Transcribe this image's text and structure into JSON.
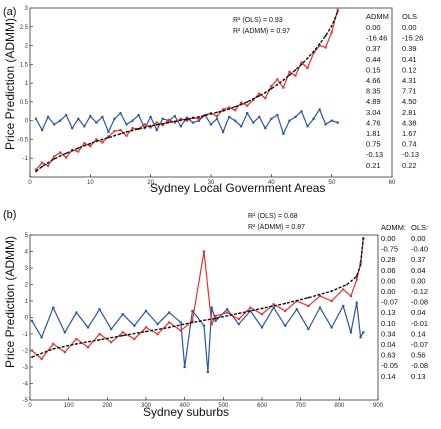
{
  "colors": {
    "admm": "#e8302e",
    "ols": "#2a55a8",
    "actual": "#111111",
    "axis": "#333333"
  },
  "panels": [
    {
      "label": "(a)",
      "xlabel": "Sydney Local Government Areas",
      "ylabel": "Price Prediction (ADMM)",
      "r2_ols": "R² (OLS) = 0.93",
      "r2_admm": "R² (ADMM) = 0.97",
      "table": {
        "headers": [
          "ADMM",
          "OLS"
        ],
        "rows": [
          [
            "0.00",
            "0.00"
          ],
          [
            "-16.46",
            "-15.26"
          ],
          [
            "0.37",
            "0.39"
          ],
          [
            "0.44",
            "0.41"
          ],
          [
            "0.15",
            "0.12"
          ],
          [
            "4.66",
            "4.31"
          ],
          [
            "8.35",
            "7.71"
          ],
          [
            "4.89",
            "4.50"
          ],
          [
            "3.04",
            "2.81"
          ],
          [
            "4.76",
            "4.38"
          ],
          [
            "1.81",
            "1.67"
          ],
          [
            "0.75",
            "0.74"
          ],
          [
            "-0.13",
            "-0.13"
          ],
          [
            "0.21",
            "0.22"
          ]
        ]
      }
    },
    {
      "label": "(b)",
      "xlabel": "Sydney suburbs",
      "ylabel": "Price Prediction (ADMM)",
      "r2_ols": "R² (OLS) = 0.68",
      "r2_admm": "R² (ADMM) = 0.87",
      "table": {
        "headers": [
          "ADMM:",
          "OLS:"
        ],
        "rows": [
          [
            "0.00",
            "0.00"
          ],
          [
            "-0.75",
            "-0.40"
          ],
          [
            "0.28",
            "0.37"
          ],
          [
            "0.06",
            "0.04"
          ],
          [
            "0.00",
            "0.00"
          ],
          [
            "0.00",
            "-0.12"
          ],
          [
            "-0.07",
            "-0.08"
          ],
          [
            "0.13",
            "0.04"
          ],
          [
            "0.10",
            "-0.01"
          ],
          [
            "0.34",
            "0.14"
          ],
          [
            "0.04",
            "-0.07"
          ],
          [
            "0.63",
            "0.56"
          ],
          [
            "-0.05",
            "-0.08"
          ],
          [
            "0.14",
            "0.13"
          ]
        ]
      }
    }
  ],
  "chart_data": [
    {
      "type": "line",
      "xlabel": "Sydney Local Government Areas",
      "ylabel": "Price Prediction (ADMM)",
      "xlim": [
        0,
        60
      ],
      "ylim": [
        -1.5,
        3
      ],
      "xticks": [
        0,
        10,
        20,
        30,
        40,
        50,
        60
      ],
      "yticks": [
        -1.5,
        -1,
        -0.5,
        0,
        0.5,
        1,
        1.5,
        2,
        2.5,
        3
      ],
      "ytick_labels": [
        "",
        "-1",
        "-0.5",
        "0",
        "0.5",
        "1",
        "1.5",
        "2",
        "2.5",
        "3"
      ],
      "series": [
        {
          "key": "actual",
          "x": [
            1,
            2,
            3,
            4,
            5,
            6,
            7,
            8,
            9,
            10,
            11,
            12,
            13,
            14,
            15,
            16,
            17,
            18,
            19,
            20,
            21,
            22,
            23,
            24,
            25,
            26,
            27,
            28,
            29,
            30,
            31,
            32,
            33,
            34,
            35,
            36,
            37,
            38,
            39,
            40,
            41,
            42,
            43,
            44,
            45,
            46,
            47,
            48,
            49,
            50,
            51
          ],
          "values": [
            -1.35,
            -1.22,
            -1.12,
            -1.02,
            -0.94,
            -0.87,
            -0.8,
            -0.73,
            -0.67,
            -0.61,
            -0.55,
            -0.5,
            -0.45,
            -0.4,
            -0.35,
            -0.3,
            -0.26,
            -0.22,
            -0.18,
            -0.14,
            -0.11,
            -0.08,
            -0.05,
            -0.02,
            0.01,
            0.04,
            0.07,
            0.1,
            0.14,
            0.18,
            0.22,
            0.26,
            0.31,
            0.37,
            0.43,
            0.5,
            0.58,
            0.66,
            0.75,
            0.85,
            0.96,
            1.08,
            1.21,
            1.35,
            1.5,
            1.66,
            1.84,
            2.04,
            2.26,
            2.52,
            2.9
          ]
        },
        {
          "key": "admm",
          "x": [
            1,
            2,
            3,
            4,
            5,
            6,
            7,
            8,
            9,
            10,
            11,
            12,
            13,
            14,
            15,
            16,
            17,
            18,
            19,
            20,
            21,
            22,
            23,
            24,
            25,
            26,
            27,
            28,
            29,
            30,
            31,
            32,
            33,
            34,
            35,
            36,
            37,
            38,
            39,
            40,
            41,
            42,
            43,
            44,
            45,
            46,
            47,
            48,
            49,
            50,
            51
          ],
          "values": [
            -1.3,
            -1.12,
            -1.2,
            -0.95,
            -0.85,
            -0.98,
            -0.78,
            -0.82,
            -0.6,
            -0.68,
            -0.5,
            -0.58,
            -0.42,
            -0.28,
            -0.25,
            -0.4,
            -0.2,
            -0.22,
            -0.1,
            -0.18,
            -0.05,
            -0.12,
            0.02,
            -0.05,
            0.05,
            0.0,
            0.08,
            0.05,
            0.15,
            0.2,
            0.12,
            0.3,
            0.35,
            0.28,
            0.48,
            0.4,
            0.55,
            0.72,
            0.6,
            0.92,
            1.1,
            0.88,
            1.3,
            1.2,
            1.55,
            1.4,
            1.8,
            2.0,
            1.95,
            2.35,
            2.95
          ]
        },
        {
          "key": "ols",
          "x": [
            1,
            2,
            3,
            4,
            5,
            6,
            7,
            8,
            9,
            10,
            11,
            12,
            13,
            14,
            15,
            16,
            17,
            18,
            19,
            20,
            21,
            22,
            23,
            24,
            25,
            26,
            27,
            28,
            29,
            30,
            31,
            32,
            33,
            34,
            35,
            36,
            37,
            38,
            39,
            40,
            41,
            42,
            43,
            44,
            45,
            46,
            47,
            48,
            49,
            50,
            51
          ],
          "values": [
            0.05,
            -0.25,
            0.1,
            -0.1,
            0.0,
            0.15,
            -0.2,
            0.05,
            -0.15,
            0.12,
            -0.05,
            0.1,
            -0.3,
            0.05,
            0.2,
            -0.1,
            0.0,
            0.15,
            -0.2,
            0.1,
            -0.25,
            0.05,
            0.0,
            0.12,
            -0.15,
            0.08,
            -0.05,
            0.0,
            0.15,
            -0.1,
            0.05,
            -0.3,
            0.1,
            0.0,
            -0.15,
            0.2,
            -0.05,
            0.1,
            -0.2,
            0.05,
            0.15,
            -0.35,
            0.0,
            0.1,
            0.25,
            -0.15,
            0.05,
            0.3,
            -0.1,
            0.0,
            -0.05
          ]
        }
      ]
    },
    {
      "type": "line",
      "xlabel": "Sydney suburbs",
      "ylabel": "Price Prediction (ADMM)",
      "xlim": [
        0,
        900
      ],
      "ylim": [
        -5,
        5
      ],
      "xticks": [
        0,
        100,
        200,
        300,
        400,
        500,
        600,
        700,
        800,
        900
      ],
      "yticks": [
        -5,
        -4,
        -3,
        -2,
        -1,
        0,
        1,
        2,
        3,
        4,
        5
      ],
      "ytick_labels": [
        "-5",
        "-4",
        "-3",
        "-2",
        "-1",
        "0",
        "1",
        "2",
        "3",
        "4",
        "5"
      ],
      "series": [
        {
          "key": "actual",
          "x": [
            5,
            60,
            120,
            180,
            240,
            300,
            360,
            420,
            480,
            540,
            600,
            660,
            720,
            780,
            820,
            845,
            855,
            862
          ],
          "values": [
            -2.4,
            -1.9,
            -1.6,
            -1.35,
            -1.1,
            -0.85,
            -0.6,
            -0.3,
            -0.05,
            0.25,
            0.55,
            0.85,
            1.2,
            1.6,
            2.0,
            2.5,
            3.2,
            4.8
          ]
        },
        {
          "key": "admm",
          "x": [
            5,
            30,
            60,
            90,
            120,
            150,
            180,
            210,
            240,
            270,
            300,
            330,
            360,
            390,
            420,
            450,
            470,
            480,
            510,
            540,
            570,
            600,
            630,
            660,
            690,
            720,
            750,
            780,
            810,
            830,
            845,
            855,
            862
          ],
          "values": [
            -2.0,
            -2.5,
            -1.6,
            -2.1,
            -1.3,
            -1.8,
            -1.0,
            -1.5,
            -0.9,
            -1.3,
            -0.6,
            -1.0,
            -0.3,
            -0.8,
            -0.2,
            4.0,
            -0.4,
            0.1,
            0.3,
            -0.1,
            0.6,
            0.2,
            0.8,
            0.4,
            1.0,
            0.7,
            1.3,
            1.0,
            1.7,
            1.3,
            2.3,
            3.3,
            4.8
          ]
        },
        {
          "key": "ols",
          "x": [
            5,
            30,
            60,
            90,
            120,
            150,
            180,
            210,
            240,
            270,
            300,
            330,
            360,
            390,
            400,
            420,
            450,
            460,
            470,
            480,
            510,
            540,
            570,
            600,
            630,
            660,
            690,
            720,
            750,
            780,
            810,
            830,
            845,
            855,
            862
          ],
          "values": [
            -0.2,
            -1.2,
            0.6,
            -0.9,
            0.3,
            -0.6,
            0.5,
            -0.7,
            0.2,
            -0.5,
            0.4,
            -0.4,
            0.3,
            -0.3,
            -3.0,
            0.4,
            -0.5,
            -3.3,
            0.6,
            -0.2,
            0.5,
            -0.4,
            0.4,
            -0.6,
            0.6,
            -0.5,
            0.5,
            -0.7,
            0.6,
            -0.6,
            0.7,
            -0.9,
            0.9,
            -1.2,
            -0.9
          ]
        }
      ]
    }
  ]
}
